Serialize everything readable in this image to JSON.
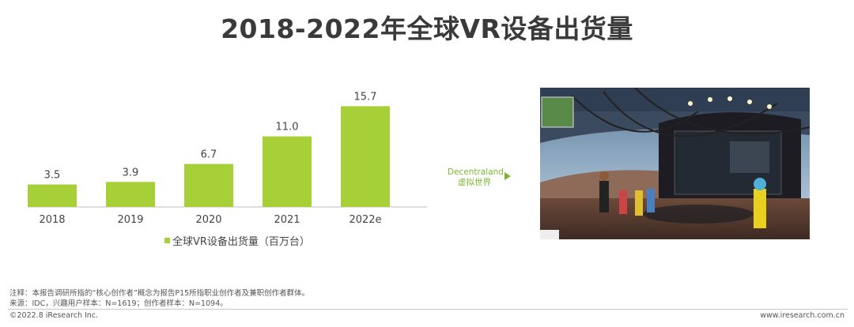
{
  "page": {
    "title": "2018-2022年全球VR设备出货量"
  },
  "chart_data": {
    "type": "bar",
    "categories": [
      "2018",
      "2019",
      "2020",
      "2021",
      "2022e"
    ],
    "values": [
      3.5,
      3.9,
      6.7,
      11.0,
      15.7
    ],
    "value_labels": [
      "3.5",
      "3.9",
      "6.7",
      "11.0",
      "15.7"
    ],
    "series": [
      {
        "name": "全球VR设备出货量（百万台）",
        "values": [
          3.5,
          3.9,
          6.7,
          11.0,
          15.7
        ]
      }
    ],
    "title": "",
    "xlabel": "",
    "ylabel": "",
    "ylim": [
      0,
      16
    ],
    "grid": false,
    "legend": "bottom",
    "bar_color": "#a7cf37",
    "label_color": "#444444"
  },
  "side": {
    "label_line1": "Decentraland",
    "label_line2": "虚拟世界",
    "accent": "#7cb82f",
    "screenshot_name": "decentraland-virtual-world-screenshot"
  },
  "notes": {
    "line1": "注释：本报告调研所指的“核心创作者”概念为报告P15所指职业创作者及兼职创作者群体。",
    "line2": "来源：IDC，兴趣用户样本：N=1619；创作者样本：N=1094。"
  },
  "footer": {
    "left": "©2022.8 iResearch Inc.",
    "right": "www.iresearch.com.cn"
  }
}
